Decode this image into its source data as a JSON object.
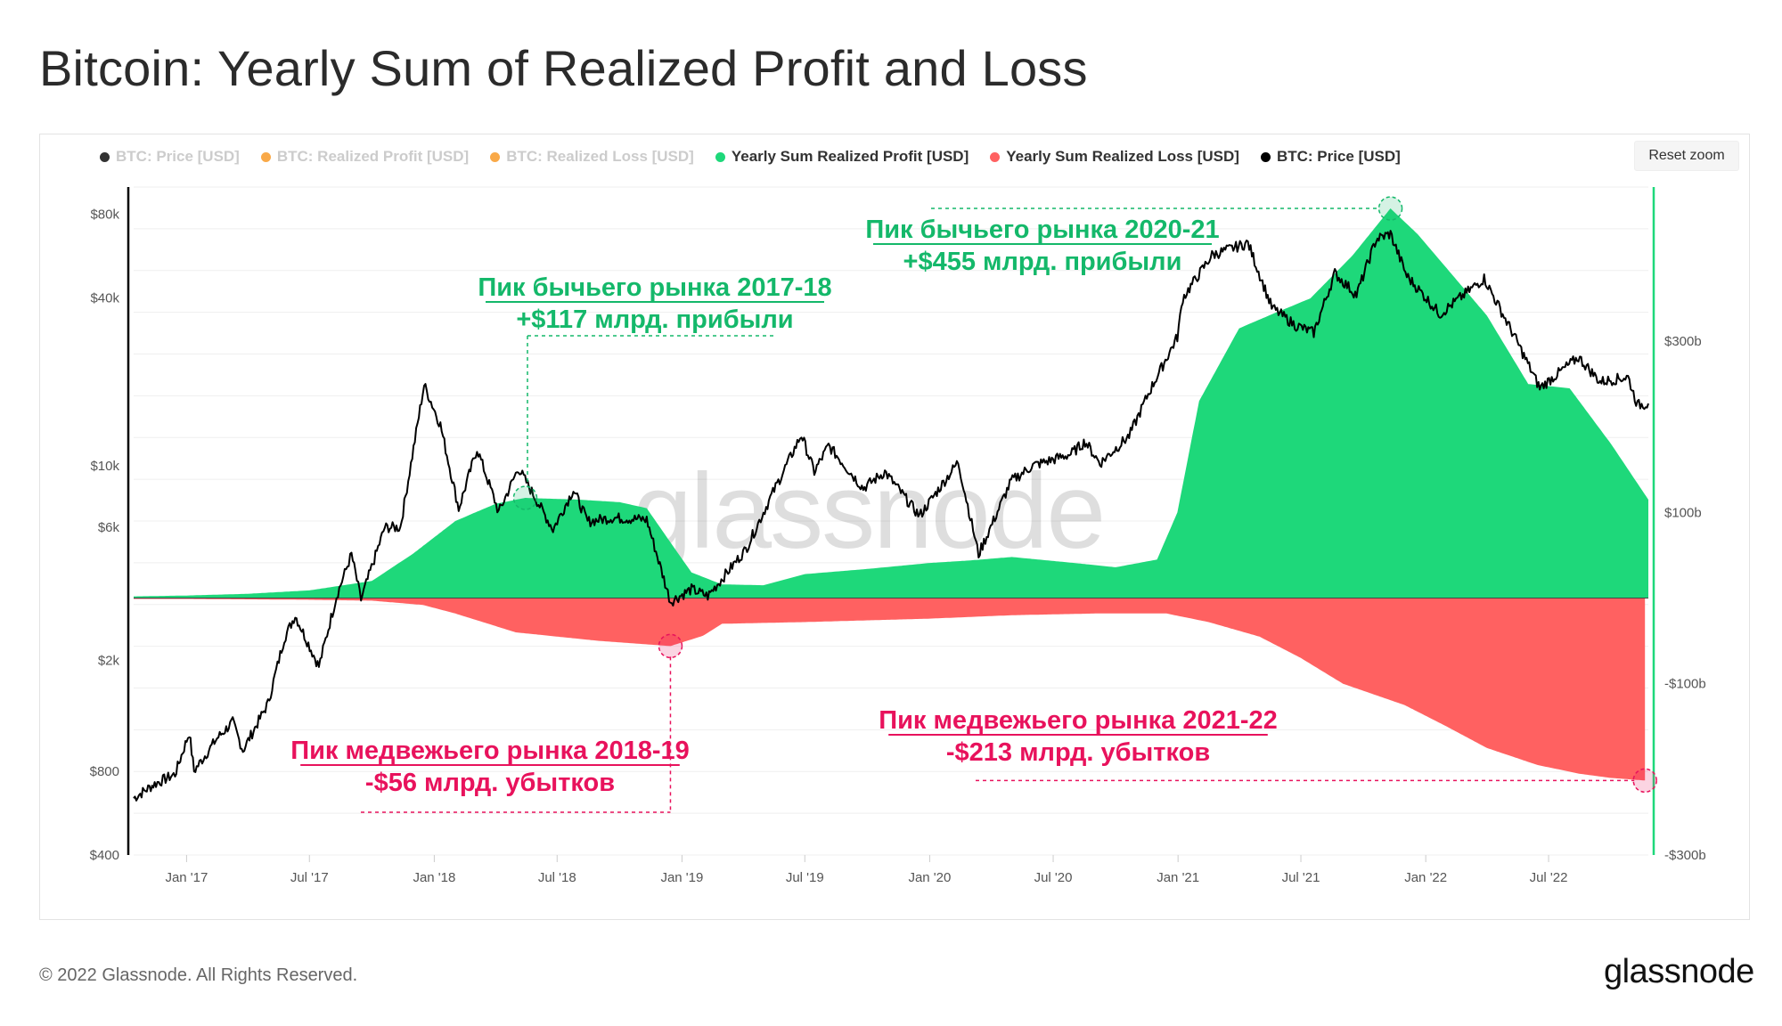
{
  "title": "Bitcoin: Yearly Sum of Realized Profit and Loss",
  "reset_zoom": "Reset zoom",
  "watermark": "glassnode",
  "footer": {
    "copyright": "© 2022 Glassnode. All Rights Reserved.",
    "logo": "glassnode"
  },
  "colors": {
    "profit": "#1ed87a",
    "loss": "#ff6161",
    "price": "#000000",
    "orange": "#f7931a",
    "profit_annotation": "#14b86a",
    "loss_annotation": "#e8125c",
    "right_axis": "#1ed87a"
  },
  "legend": [
    {
      "label": "BTC: Price [USD]",
      "color": "#000000",
      "hidden": true
    },
    {
      "label": "BTC: Realized Profit [USD]",
      "color": "#f7931a",
      "hidden": true
    },
    {
      "label": "BTC: Realized Loss [USD]",
      "color": "#f7931a",
      "hidden": true
    },
    {
      "label": "Yearly Sum Realized Profit [USD]",
      "color": "#1ed87a",
      "hidden": false
    },
    {
      "label": "Yearly Sum Realized Loss [USD]",
      "color": "#ff6161",
      "hidden": false
    },
    {
      "label": "BTC: Price [USD]",
      "color": "#000000",
      "hidden": false
    }
  ],
  "chart_data": {
    "type": "area",
    "y_left": {
      "scale": "log",
      "range": [
        400,
        100000
      ],
      "ticks": [
        {
          "value": 400,
          "label": "$400"
        },
        {
          "value": 800,
          "label": "$800"
        },
        {
          "value": 2000,
          "label": "$2k"
        },
        {
          "value": 6000,
          "label": "$6k"
        },
        {
          "value": 10000,
          "label": "$10k"
        },
        {
          "value": 40000,
          "label": "$40k"
        },
        {
          "value": 80000,
          "label": "$80k"
        }
      ]
    },
    "y_right": {
      "scale": "linear",
      "range": [
        -300,
        480
      ],
      "unit": "billion USD",
      "ticks": [
        {
          "value": 300,
          "label": "$300b"
        },
        {
          "value": 100,
          "label": "$100b"
        },
        {
          "value": -100,
          "label": "-$100b"
        },
        {
          "value": -300,
          "label": "-$300b"
        }
      ]
    },
    "x_range": [
      "2016-10-15",
      "2022-11-25"
    ],
    "x_ticks": [
      {
        "date": "2017-01-01",
        "label": "Jan '17"
      },
      {
        "date": "2017-07-01",
        "label": "Jul '17"
      },
      {
        "date": "2018-01-01",
        "label": "Jan '18"
      },
      {
        "date": "2018-07-01",
        "label": "Jul '18"
      },
      {
        "date": "2019-01-01",
        "label": "Jan '19"
      },
      {
        "date": "2019-07-01",
        "label": "Jul '19"
      },
      {
        "date": "2020-01-01",
        "label": "Jan '20"
      },
      {
        "date": "2020-07-01",
        "label": "Jul '20"
      },
      {
        "date": "2021-01-01",
        "label": "Jan '21"
      },
      {
        "date": "2021-07-01",
        "label": "Jul '21"
      },
      {
        "date": "2022-01-01",
        "label": "Jan '22"
      },
      {
        "date": "2022-07-01",
        "label": "Jul '22"
      }
    ],
    "series": [
      {
        "name": "Yearly Sum Realized Profit [USD]",
        "axis": "right",
        "unit": "billion USD",
        "points": [
          [
            "2016-10-15",
            2
          ],
          [
            "2017-01-01",
            3
          ],
          [
            "2017-04-01",
            5
          ],
          [
            "2017-07-01",
            9
          ],
          [
            "2017-10-01",
            20
          ],
          [
            "2017-12-01",
            52
          ],
          [
            "2018-02-01",
            90
          ],
          [
            "2018-04-01",
            110
          ],
          [
            "2018-05-15",
            117
          ],
          [
            "2018-08-01",
            115
          ],
          [
            "2018-10-01",
            112
          ],
          [
            "2018-11-10",
            105
          ],
          [
            "2018-12-15",
            65
          ],
          [
            "2019-01-15",
            30
          ],
          [
            "2019-03-01",
            16
          ],
          [
            "2019-05-01",
            15
          ],
          [
            "2019-07-01",
            28
          ],
          [
            "2019-10-01",
            34
          ],
          [
            "2020-01-01",
            41
          ],
          [
            "2020-03-01",
            44
          ],
          [
            "2020-05-01",
            48
          ],
          [
            "2020-08-01",
            41
          ],
          [
            "2020-10-01",
            36
          ],
          [
            "2020-12-01",
            45
          ],
          [
            "2020-12-31",
            100
          ],
          [
            "2021-02-01",
            230
          ],
          [
            "2021-04-01",
            315
          ],
          [
            "2021-05-15",
            330
          ],
          [
            "2021-07-15",
            350
          ],
          [
            "2021-09-15",
            400
          ],
          [
            "2021-11-10",
            455
          ],
          [
            "2021-12-20",
            425
          ],
          [
            "2022-02-01",
            385
          ],
          [
            "2022-04-01",
            330
          ],
          [
            "2022-06-01",
            250
          ],
          [
            "2022-08-01",
            245
          ],
          [
            "2022-10-01",
            180
          ],
          [
            "2022-11-25",
            115
          ]
        ]
      },
      {
        "name": "Yearly Sum Realized Loss [USD]",
        "axis": "right",
        "unit": "billion USD",
        "points": [
          [
            "2016-10-15",
            -1
          ],
          [
            "2017-01-01",
            -1
          ],
          [
            "2017-07-01",
            -2
          ],
          [
            "2017-10-01",
            -3
          ],
          [
            "2017-12-15",
            -8
          ],
          [
            "2018-02-01",
            -18
          ],
          [
            "2018-05-01",
            -40
          ],
          [
            "2018-09-01",
            -50
          ],
          [
            "2018-12-15",
            -56
          ],
          [
            "2019-02-01",
            -44
          ],
          [
            "2019-03-01",
            -30
          ],
          [
            "2019-07-01",
            -28
          ],
          [
            "2019-10-01",
            -26
          ],
          [
            "2020-01-01",
            -24
          ],
          [
            "2020-05-01",
            -20
          ],
          [
            "2020-09-01",
            -18
          ],
          [
            "2020-12-15",
            -18
          ],
          [
            "2021-02-15",
            -28
          ],
          [
            "2021-05-01",
            -45
          ],
          [
            "2021-07-01",
            -70
          ],
          [
            "2021-09-01",
            -100
          ],
          [
            "2021-12-01",
            -125
          ],
          [
            "2022-02-01",
            -150
          ],
          [
            "2022-04-01",
            -175
          ],
          [
            "2022-06-15",
            -195
          ],
          [
            "2022-08-15",
            -205
          ],
          [
            "2022-10-01",
            -210
          ],
          [
            "2022-11-20",
            -213
          ]
        ]
      },
      {
        "name": "BTC: Price [USD]",
        "axis": "left",
        "unit": "USD",
        "points": [
          [
            "2016-10-15",
            640
          ],
          [
            "2016-11-15",
            720
          ],
          [
            "2016-12-15",
            780
          ],
          [
            "2017-01-05",
            1100
          ],
          [
            "2017-01-12",
            800
          ],
          [
            "2017-02-15",
            1050
          ],
          [
            "2017-03-10",
            1200
          ],
          [
            "2017-03-25",
            950
          ],
          [
            "2017-05-01",
            1400
          ],
          [
            "2017-05-25",
            2400
          ],
          [
            "2017-06-10",
            2900
          ],
          [
            "2017-07-15",
            1900
          ],
          [
            "2017-08-10",
            3400
          ],
          [
            "2017-09-01",
            4800
          ],
          [
            "2017-09-15",
            3300
          ],
          [
            "2017-10-20",
            6000
          ],
          [
            "2017-11-12",
            6000
          ],
          [
            "2017-12-17",
            19500
          ],
          [
            "2018-01-10",
            14000
          ],
          [
            "2018-02-06",
            7000
          ],
          [
            "2018-03-05",
            11500
          ],
          [
            "2018-04-06",
            6800
          ],
          [
            "2018-05-05",
            9800
          ],
          [
            "2018-06-25",
            5900
          ],
          [
            "2018-07-25",
            8200
          ],
          [
            "2018-08-15",
            6300
          ],
          [
            "2018-09-20",
            6500
          ],
          [
            "2018-11-10",
            6400
          ],
          [
            "2018-12-15",
            3250
          ],
          [
            "2019-01-15",
            3600
          ],
          [
            "2019-02-08",
            3400
          ],
          [
            "2019-04-05",
            5000
          ],
          [
            "2019-05-15",
            8000
          ],
          [
            "2019-06-26",
            12900
          ],
          [
            "2019-07-15",
            9500
          ],
          [
            "2019-08-05",
            11800
          ],
          [
            "2019-09-25",
            8300
          ],
          [
            "2019-10-27",
            9500
          ],
          [
            "2019-12-17",
            6600
          ],
          [
            "2020-02-12",
            10300
          ],
          [
            "2020-03-13",
            4800
          ],
          [
            "2020-04-30",
            8800
          ],
          [
            "2020-06-01",
            10000
          ],
          [
            "2020-07-27",
            11000
          ],
          [
            "2020-08-17",
            12200
          ],
          [
            "2020-09-08",
            10200
          ],
          [
            "2020-10-21",
            12800
          ],
          [
            "2020-11-20",
            18500
          ],
          [
            "2020-12-31",
            29000
          ],
          [
            "2021-01-08",
            40000
          ],
          [
            "2021-02-20",
            57000
          ],
          [
            "2021-04-14",
            63000
          ],
          [
            "2021-05-19",
            37000
          ],
          [
            "2021-06-22",
            32000
          ],
          [
            "2021-07-20",
            30000
          ],
          [
            "2021-08-20",
            49000
          ],
          [
            "2021-09-21",
            41000
          ],
          [
            "2021-10-20",
            65000
          ],
          [
            "2021-11-10",
            68000
          ],
          [
            "2021-12-04",
            48000
          ],
          [
            "2022-01-22",
            35000
          ],
          [
            "2022-03-28",
            47000
          ],
          [
            "2022-05-12",
            29000
          ],
          [
            "2022-06-18",
            19000
          ],
          [
            "2022-08-14",
            24500
          ],
          [
            "2022-09-15",
            20000
          ],
          [
            "2022-10-26",
            20800
          ],
          [
            "2022-11-09",
            16500
          ],
          [
            "2022-11-25",
            16700
          ]
        ]
      }
    ],
    "annotations": [
      {
        "text": [
          "Пик бычьего рынка 2017-18",
          "+$117 млрд. прибыли"
        ],
        "kind": "profit",
        "date": "2018-05-15",
        "value": 117
      },
      {
        "text": [
          "Пик бычьего рынка 2020-21",
          "+$455 млрд. прибыли"
        ],
        "kind": "profit",
        "date": "2021-11-10",
        "value": 455
      },
      {
        "text": [
          "Пик медвежьего рынка 2018-19",
          "-$56 млрд. убытков"
        ],
        "kind": "loss",
        "date": "2018-12-15",
        "value": -56
      },
      {
        "text": [
          "Пик медвежьего рынка 2021-22",
          "-$213 млрд. убытков"
        ],
        "kind": "loss",
        "date": "2022-11-20",
        "value": -213
      }
    ]
  }
}
